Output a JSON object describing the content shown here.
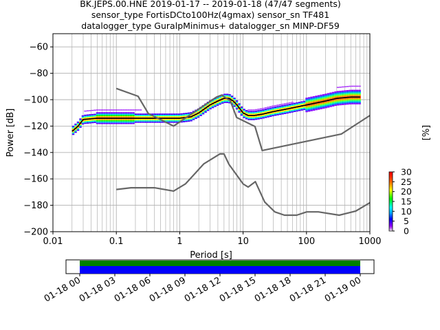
{
  "chart_data": {
    "type": "heatmap",
    "title_lines": [
      "BK.JEPS.00.HNE   2019-01-17 -- 2019-01-18  (47/47 segments)",
      "sensor_type FortisDCto100Hz(4gmax) sensor_sn TF481",
      "datalogger_type GuralpMinimus+ datalogger_sn MINP-DF59"
    ],
    "xlabel": "Period [s]",
    "ylabel": "Power [dB]",
    "xscale": "log",
    "xlim": [
      0.01,
      1000
    ],
    "ylim": [
      -200,
      -50
    ],
    "x_ticks": [
      {
        "value": 0.01,
        "label": "0.01"
      },
      {
        "value": 0.1,
        "label": "0.1"
      },
      {
        "value": 1,
        "label": "1"
      },
      {
        "value": 10,
        "label": "10"
      },
      {
        "value": 100,
        "label": "100"
      },
      {
        "value": 1000,
        "label": "1000"
      }
    ],
    "y_ticks": [
      {
        "value": -60,
        "label": "−60"
      },
      {
        "value": -80,
        "label": "−80"
      },
      {
        "value": -100,
        "label": "−100"
      },
      {
        "value": -120,
        "label": "−120"
      },
      {
        "value": -140,
        "label": "−140"
      },
      {
        "value": -160,
        "label": "−160"
      },
      {
        "value": -180,
        "label": "−180"
      },
      {
        "value": -200,
        "label": "−200"
      }
    ],
    "grid": true,
    "colorbar": {
      "label": "[%]",
      "min": 0,
      "max": 30,
      "ticks": [
        "0",
        "5",
        "10",
        "15",
        "20",
        "25",
        "30"
      ]
    },
    "series": [
      {
        "role": "mode",
        "color": "#000000",
        "x": [
          0.02,
          0.025,
          0.03,
          0.05,
          0.1,
          0.2,
          0.5,
          1,
          1.5,
          2,
          3,
          4,
          5,
          6,
          7,
          8,
          10,
          12,
          15,
          20,
          30,
          50,
          100,
          200,
          300,
          500,
          700
        ],
        "y": [
          -124,
          -120,
          -115,
          -114,
          -114,
          -114,
          -114,
          -114,
          -113,
          -110,
          -104,
          -101,
          -99,
          -99,
          -101,
          -104,
          -110,
          -112,
          -112,
          -111,
          -109,
          -107,
          -104,
          -101,
          -99,
          -98,
          -98
        ]
      },
      {
        "role": "noise-model-high",
        "color": "#666666",
        "x": [
          0.1,
          0.22,
          0.32,
          0.8,
          3.8,
          4.6,
          6.3,
          7.9,
          15.4,
          20,
          354.8,
          1000
        ],
        "y": [
          -91.5,
          -97.4,
          -110.5,
          -120,
          -98,
          -96.5,
          -101,
          -113.5,
          -120.3,
          -138.5,
          -126,
          -112
        ]
      },
      {
        "role": "noise-model-low",
        "color": "#666666",
        "x": [
          0.1,
          0.17,
          0.4,
          0.8,
          1.24,
          2.4,
          4.3,
          5,
          6,
          10,
          12,
          15.6,
          21.9,
          31.6,
          45,
          70,
          101,
          154,
          328,
          600,
          1000
        ],
        "y": [
          -168,
          -166.7,
          -166.7,
          -169.2,
          -163.7,
          -148.6,
          -141.1,
          -141.1,
          -149.0,
          -163.8,
          -166.2,
          -162.1,
          -177.5,
          -185.0,
          -187.5,
          -187.5,
          -185.0,
          -185.0,
          -187.5,
          -184.4,
          -178.0
        ]
      }
    ],
    "time_coverage": {
      "tick_labels": [
        "01-18 00",
        "01-18 03",
        "01-18 06",
        "01-18 09",
        "01-18 12",
        "01-18 15",
        "01-18 18",
        "01-18 21",
        "01-19 00"
      ],
      "data_color": "#0000ff",
      "coverage_color": "#008000"
    }
  }
}
